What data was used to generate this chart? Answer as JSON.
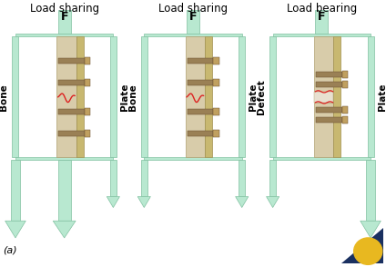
{
  "panels": [
    {
      "title": "Load sharing",
      "label_left": "Bone",
      "label_right": "Plate",
      "fracture_gap": false,
      "left_arrow_big": true,
      "right_arrow_big": false,
      "center_arrow": true
    },
    {
      "title": "Load sharing",
      "label_left": "Bone",
      "label_right": "Plate",
      "fracture_gap": false,
      "left_arrow_big": false,
      "right_arrow_big": false,
      "center_arrow": false
    },
    {
      "title": "Load bearing",
      "label_left": "Defect",
      "label_right": "Plate",
      "fracture_gap": true,
      "left_arrow_big": false,
      "right_arrow_big": true,
      "center_arrow": false
    }
  ],
  "arrow_fill": "#b8e8d0",
  "arrow_edge": "#80c0a0",
  "bone_fill": "#d8ccaa",
  "bone_edge": "#b0a070",
  "plate_fill": "#c8b870",
  "plate_edge": "#a09050",
  "screw_fill": "#9a8055",
  "screw_head_fill": "#c0a060",
  "screw_edge": "#6a5030",
  "fracture_color": "#dd2020",
  "gap_fill": "#e8e0d0",
  "title_fontsize": 8.5,
  "label_fontsize": 7.5,
  "f_fontsize": 9,
  "panel_label": "(a)",
  "bg_color": "#ffffff",
  "logo_tri_color": "#1a3060",
  "logo_circle_color": "#e8b820"
}
